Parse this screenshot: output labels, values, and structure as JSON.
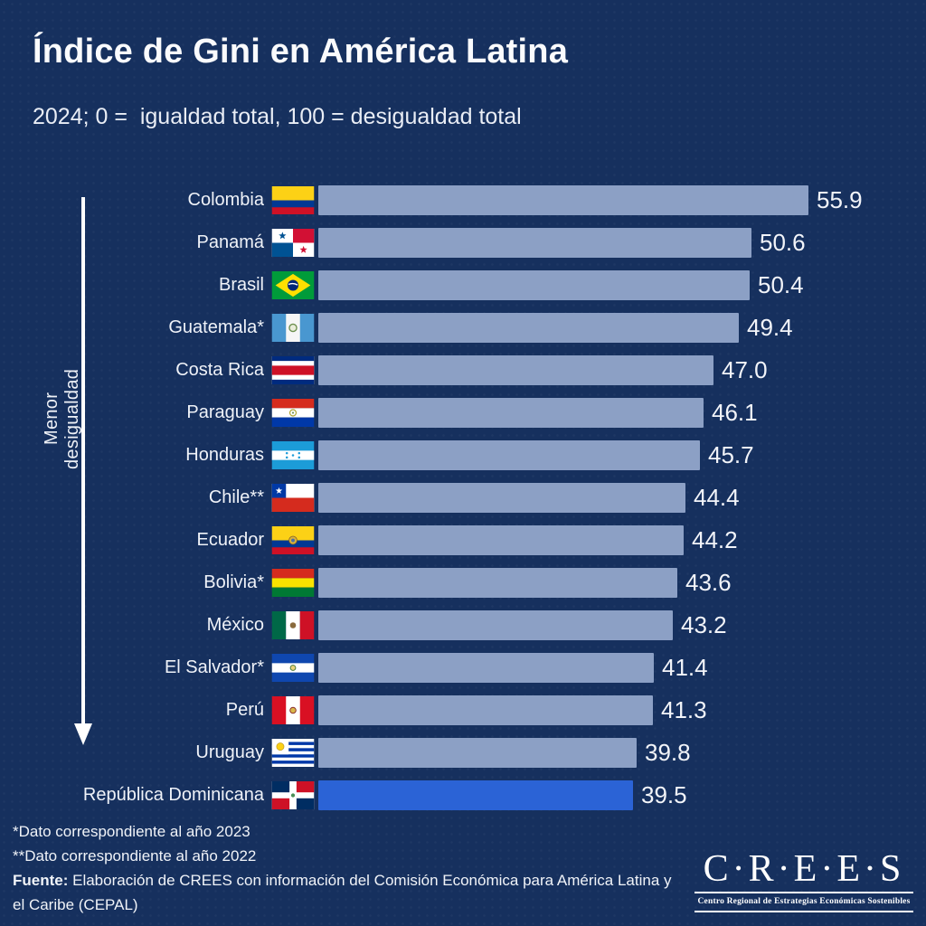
{
  "title": "Índice de Gini en América Latina",
  "subtitle": "2024; 0 =  igualdad total, 100 = desigualdad total",
  "axis_annotation": "Menor desigualdad",
  "chart_data": {
    "type": "bar",
    "orientation": "horizontal",
    "title": "Índice de Gini en América Latina",
    "subtitle": "2024; 0 =  igualdad total, 100 = desigualdad total",
    "categories": [
      "Colombia",
      "Panamá",
      "Brasil",
      "Guatemala*",
      "Costa Rica",
      "Paraguay",
      "Honduras",
      "Chile**",
      "Ecuador",
      "Bolivia*",
      "México",
      "El Salvador*",
      "Perú",
      "Uruguay",
      "República Dominicana"
    ],
    "values": [
      55.9,
      50.6,
      50.4,
      49.4,
      47.0,
      46.1,
      45.7,
      44.4,
      44.2,
      43.6,
      43.2,
      41.4,
      41.3,
      39.8,
      39.5
    ],
    "data_labels": [
      "55.9",
      "50.6",
      "50.4",
      "49.4",
      "47.0",
      "46.1",
      "45.7",
      "44.4",
      "44.2",
      "43.6",
      "43.2",
      "41.4",
      "41.3",
      "39.8",
      "39.5"
    ],
    "flags": [
      "colombia",
      "panama",
      "brasil",
      "guatemala",
      "costa-rica",
      "paraguay",
      "honduras",
      "chile",
      "ecuador",
      "bolivia",
      "mexico",
      "el-salvador",
      "peru",
      "uruguay",
      "republica-dominicana"
    ],
    "highlight_index": 14,
    "annotation_arrow": "Menor desigualdad",
    "xlim": [
      10,
      55.9
    ],
    "grid": false,
    "legend": false
  },
  "footnotes": [
    "*Dato correspondiente al año 2023",
    "**Dato correspondiente al año 2022"
  ],
  "source": {
    "label": "Fuente:",
    "text": " Elaboración de CREES con información del Comisión Económica para América Latina y el Caribe (CEPAL)"
  },
  "logo": {
    "name": "C·R·E·E·S",
    "tagline": "Centro Regional de Estrategias Económicas Sostenibles"
  },
  "colors": {
    "background": "#16305e",
    "bar": "#8CA0C5",
    "highlight": "#2B63D6",
    "text": "#F5F7FB"
  }
}
